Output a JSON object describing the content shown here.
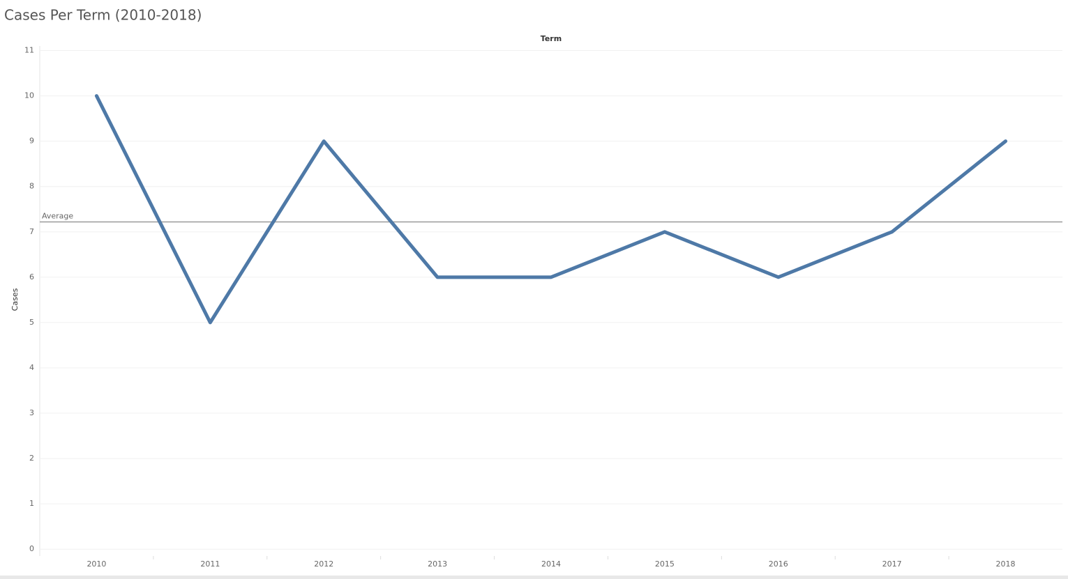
{
  "chart_data": {
    "type": "line",
    "title": "Cases Per Term (2010-2018)",
    "x_label": "Term",
    "y_label": "Cases",
    "categories": [
      "2010",
      "2011",
      "2012",
      "2013",
      "2014",
      "2015",
      "2016",
      "2017",
      "2018"
    ],
    "values": [
      10,
      5,
      9,
      6,
      6,
      7,
      6,
      7,
      9
    ],
    "color": "#4e79a7",
    "ylim": [
      -0.15,
      11.1
    ],
    "yticks": [
      0,
      1,
      2,
      3,
      4,
      5,
      6,
      7,
      8,
      9,
      10,
      11
    ],
    "grid": true,
    "reference_line": {
      "label": "Average",
      "value": 7.22
    }
  }
}
